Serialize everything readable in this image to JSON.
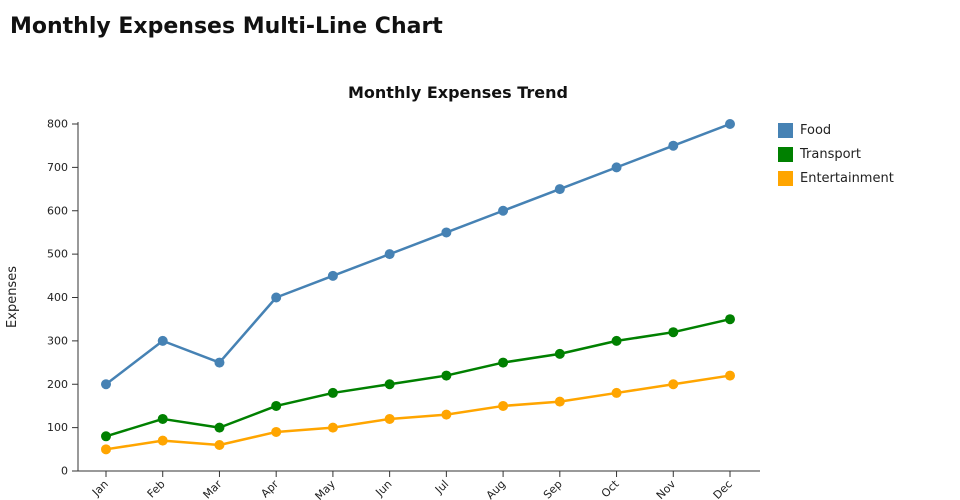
{
  "page": {
    "title": "Monthly Expenses Multi-Line Chart"
  },
  "chart_data": {
    "type": "line",
    "title": "Monthly Expenses Trend",
    "xlabel": "",
    "ylabel": "Expenses",
    "categories": [
      "Jan",
      "Feb",
      "Mar",
      "Apr",
      "May",
      "Jun",
      "Jul",
      "Aug",
      "Sep",
      "Oct",
      "Nov",
      "Dec"
    ],
    "series": [
      {
        "name": "Food",
        "color": "#4682B4",
        "values": [
          200,
          300,
          250,
          400,
          450,
          500,
          550,
          600,
          650,
          700,
          750,
          800
        ]
      },
      {
        "name": "Transport",
        "color": "#008000",
        "values": [
          80,
          120,
          100,
          150,
          180,
          200,
          220,
          250,
          270,
          300,
          320,
          350
        ]
      },
      {
        "name": "Entertainment",
        "color": "#FFA500",
        "values": [
          50,
          70,
          60,
          90,
          100,
          120,
          130,
          150,
          160,
          180,
          200,
          220
        ]
      }
    ],
    "ylim": [
      0,
      800
    ],
    "ytick_step": 100,
    "grid": false,
    "legend_position": "right",
    "axis_color": "#333333",
    "text_color": "#222222"
  }
}
